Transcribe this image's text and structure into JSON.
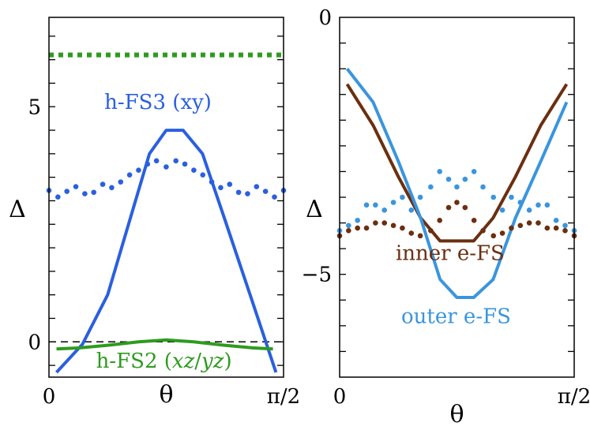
{
  "chart_data": [
    {
      "type": "line",
      "title": "",
      "xlabel": "θ",
      "ylabel": "Δ",
      "xlim": [
        0,
        1.5708
      ],
      "ylim": [
        -0.75,
        6.9
      ],
      "x_tick_labels": [
        {
          "value": 0,
          "label": "0"
        },
        {
          "value": 1.5708,
          "label": "π/2"
        }
      ],
      "y_tick_labels": [
        {
          "value": 0,
          "label": "0"
        },
        {
          "value": 5,
          "label": "5"
        }
      ],
      "y_minor_ticks": [
        -0.5,
        0,
        0.5,
        1,
        1.5,
        2,
        2.5,
        3,
        3.5,
        4,
        4.5,
        5,
        5.5,
        6,
        6.5
      ],
      "reference_line": {
        "y": 0,
        "style": "dashed",
        "color": "#000000"
      },
      "series": [
        {
          "name": "h-FS3 (xy)",
          "style": "solid",
          "color": "#2a5fe0",
          "x": [
            0.05,
            0.224,
            0.393,
            0.542,
            0.673,
            0.785,
            0.898,
            1.028,
            1.178,
            1.347,
            1.52
          ],
          "y": [
            -0.65,
            -0.05,
            1.0,
            2.6,
            4.0,
            4.5,
            4.5,
            4.0,
            2.6,
            1.0,
            -0.65
          ]
        },
        {
          "name": "h-FS3 (xy) dotted",
          "style": "dotted",
          "color": "#2a5fe0",
          "x": [
            0.0,
            0.06,
            0.12,
            0.18,
            0.24,
            0.3,
            0.36,
            0.42,
            0.48,
            0.54,
            0.6,
            0.66,
            0.72,
            0.785,
            0.85,
            0.91,
            0.97,
            1.03,
            1.09,
            1.15,
            1.21,
            1.27,
            1.33,
            1.39,
            1.45,
            1.51,
            1.5708
          ],
          "y": [
            3.22,
            3.08,
            3.2,
            3.3,
            3.15,
            3.18,
            3.35,
            3.28,
            3.4,
            3.55,
            3.65,
            3.78,
            3.85,
            3.72,
            3.85,
            3.78,
            3.65,
            3.55,
            3.4,
            3.28,
            3.35,
            3.18,
            3.15,
            3.3,
            3.2,
            3.08,
            3.22
          ]
        },
        {
          "name": "h-FS2 (xz/yz)",
          "style": "solid",
          "color": "#2e9b1f",
          "x": [
            0.05,
            0.2,
            0.4,
            0.6,
            0.785,
            0.97,
            1.17,
            1.37,
            1.5
          ],
          "y": [
            -0.15,
            -0.13,
            -0.07,
            0.0,
            0.04,
            0.0,
            -0.07,
            -0.13,
            -0.15
          ]
        },
        {
          "name": "h-FS2 (xz/yz) dotted",
          "style": "dotted",
          "color": "#2e9b1f",
          "x": [
            0.0,
            1.5708
          ],
          "y": [
            6.1,
            6.1
          ]
        }
      ],
      "annotations": [
        {
          "text": "h-FS3 (xy)",
          "color": "#2a5fe0",
          "x": 0.73,
          "y": 4.95
        },
        {
          "text_parts": [
            "h-FS2 (",
            "xz",
            "/",
            "yz",
            ")"
          ],
          "color": "#2e9b1f",
          "x": 0.77,
          "y": -0.55
        }
      ]
    },
    {
      "type": "line",
      "title": "",
      "xlabel": "θ",
      "ylabel": "Δ",
      "xlim": [
        0,
        1.5708
      ],
      "ylim": [
        -7.0,
        0.0
      ],
      "x_tick_labels": [
        {
          "value": 0,
          "label": "0"
        },
        {
          "value": 1.5708,
          "label": "π/2"
        }
      ],
      "y_tick_labels": [
        {
          "value": 0,
          "label": "0"
        },
        {
          "value": -5,
          "label": "−5"
        }
      ],
      "y_minor_ticks": [
        -6.5,
        -6,
        -5.5,
        -5,
        -4.5,
        -4,
        -3.5,
        -3,
        -2.5,
        -2,
        -1.5,
        -1,
        -0.5
      ],
      "series": [
        {
          "name": "inner e-FS",
          "style": "solid",
          "color": "#6b2f10",
          "x": [
            0.05,
            0.224,
            0.393,
            0.542,
            0.673,
            0.785,
            0.898,
            1.028,
            1.178,
            1.347,
            1.52
          ],
          "y": [
            -1.3,
            -2.1,
            -3.1,
            -3.9,
            -4.35,
            -4.35,
            -4.35,
            -3.9,
            -3.1,
            -2.1,
            -1.3
          ]
        },
        {
          "name": "outer e-FS",
          "style": "solid",
          "color": "#3a95de",
          "x": [
            0.05,
            0.224,
            0.393,
            0.542,
            0.673,
            0.785,
            0.898,
            1.028,
            1.178,
            1.347,
            1.52
          ],
          "y": [
            -1.0,
            -1.65,
            -2.8,
            -3.9,
            -5.1,
            -5.45,
            -5.45,
            -5.1,
            -3.9,
            -2.8,
            -1.65
          ]
        },
        {
          "name": "outer e-FS dotted",
          "style": "dotted",
          "color": "#3a95de",
          "x": [
            0.0,
            0.06,
            0.12,
            0.18,
            0.24,
            0.3,
            0.36,
            0.42,
            0.48,
            0.54,
            0.61,
            0.67,
            0.73,
            0.785,
            0.84,
            0.9,
            0.96,
            1.03,
            1.09,
            1.15,
            1.21,
            1.27,
            1.33,
            1.39,
            1.45,
            1.51,
            1.5708
          ],
          "y": [
            -4.15,
            -4.05,
            -3.95,
            -3.65,
            -3.65,
            -3.75,
            -3.6,
            -3.5,
            -3.75,
            -3.5,
            -3.3,
            -3.0,
            -3.15,
            -3.3,
            -3.15,
            -3.0,
            -3.3,
            -3.5,
            -3.75,
            -3.5,
            -3.6,
            -3.75,
            -3.65,
            -3.65,
            -3.95,
            -4.05,
            -4.15
          ]
        },
        {
          "name": "inner e-FS dotted",
          "style": "dotted",
          "color": "#6b2f10",
          "x": [
            0.0,
            0.06,
            0.12,
            0.18,
            0.24,
            0.3,
            0.36,
            0.42,
            0.48,
            0.54,
            0.61,
            0.67,
            0.73,
            0.785,
            0.84,
            0.9,
            0.96,
            1.03,
            1.09,
            1.15,
            1.21,
            1.27,
            1.33,
            1.39,
            1.45,
            1.51,
            1.5708
          ],
          "y": [
            -4.25,
            -4.15,
            -4.1,
            -4.1,
            -4.0,
            -4.0,
            -4.05,
            -4.1,
            -4.2,
            -4.25,
            -4.15,
            -3.95,
            -3.7,
            -3.6,
            -3.7,
            -3.95,
            -4.15,
            -4.25,
            -4.2,
            -4.1,
            -4.05,
            -4.0,
            -4.0,
            -4.1,
            -4.1,
            -4.15,
            -4.25
          ]
        }
      ],
      "annotations": [
        {
          "text": "inner e-FS",
          "color": "#6b2f10",
          "x": 0.74,
          "y": -4.72
        },
        {
          "text": "outer e-FS",
          "color": "#3a95de",
          "x": 0.78,
          "y": -5.95
        }
      ]
    }
  ]
}
